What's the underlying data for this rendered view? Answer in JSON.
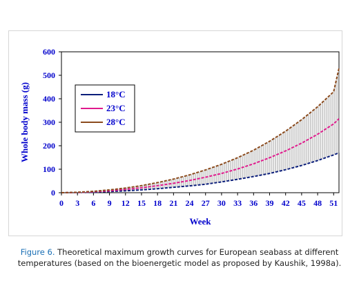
{
  "chart_data": {
    "type": "line",
    "title": "",
    "xlabel": "Week",
    "ylabel": "Whole body mass (g)",
    "xlim": [
      0,
      52
    ],
    "ylim": [
      0,
      600
    ],
    "x_ticks": [
      0,
      3,
      6,
      9,
      12,
      15,
      18,
      21,
      24,
      27,
      30,
      33,
      36,
      39,
      42,
      45,
      48,
      51
    ],
    "y_ticks": [
      0,
      100,
      200,
      300,
      400,
      500,
      600
    ],
    "grid": false,
    "legend_position": "upper-left",
    "fill_between": {
      "from_series": "18°C",
      "to_series": "28°C",
      "style": "vertical-hatch"
    },
    "series": [
      {
        "name": "18°C",
        "color": "#0a1d7a",
        "x": [
          0,
          3,
          6,
          9,
          12,
          15,
          18,
          21,
          24,
          27,
          30,
          33,
          36,
          39,
          42,
          45,
          48,
          51,
          52
        ],
        "values": [
          0,
          1,
          2,
          5,
          8,
          12,
          17,
          23,
          29,
          36,
          46,
          57,
          69,
          82,
          98,
          116,
          137,
          161,
          170
        ]
      },
      {
        "name": "23°C",
        "color": "#e0198c",
        "x": [
          0,
          3,
          6,
          9,
          12,
          15,
          18,
          21,
          24,
          27,
          30,
          33,
          36,
          39,
          42,
          45,
          48,
          51,
          52
        ],
        "values": [
          0,
          1,
          4,
          8,
          14,
          21,
          30,
          40,
          52,
          66,
          82,
          101,
          123,
          149,
          178,
          211,
          249,
          293,
          315
        ]
      },
      {
        "name": "28°C",
        "color": "#8b4a1c",
        "x": [
          0,
          3,
          6,
          9,
          12,
          15,
          18,
          21,
          24,
          27,
          30,
          33,
          36,
          39,
          42,
          45,
          48,
          51,
          52
        ],
        "values": [
          0,
          2,
          6,
          12,
          20,
          30,
          43,
          58,
          76,
          97,
          121,
          149,
          181,
          219,
          262,
          311,
          366,
          430,
          530
        ]
      }
    ]
  },
  "caption": {
    "figure_label": "Figure 6.",
    "text": " Theoretical maximum growth curves for European seabass at different temperatures (based on the bioenergetic model as proposed by Kaushik, 1998a)."
  }
}
